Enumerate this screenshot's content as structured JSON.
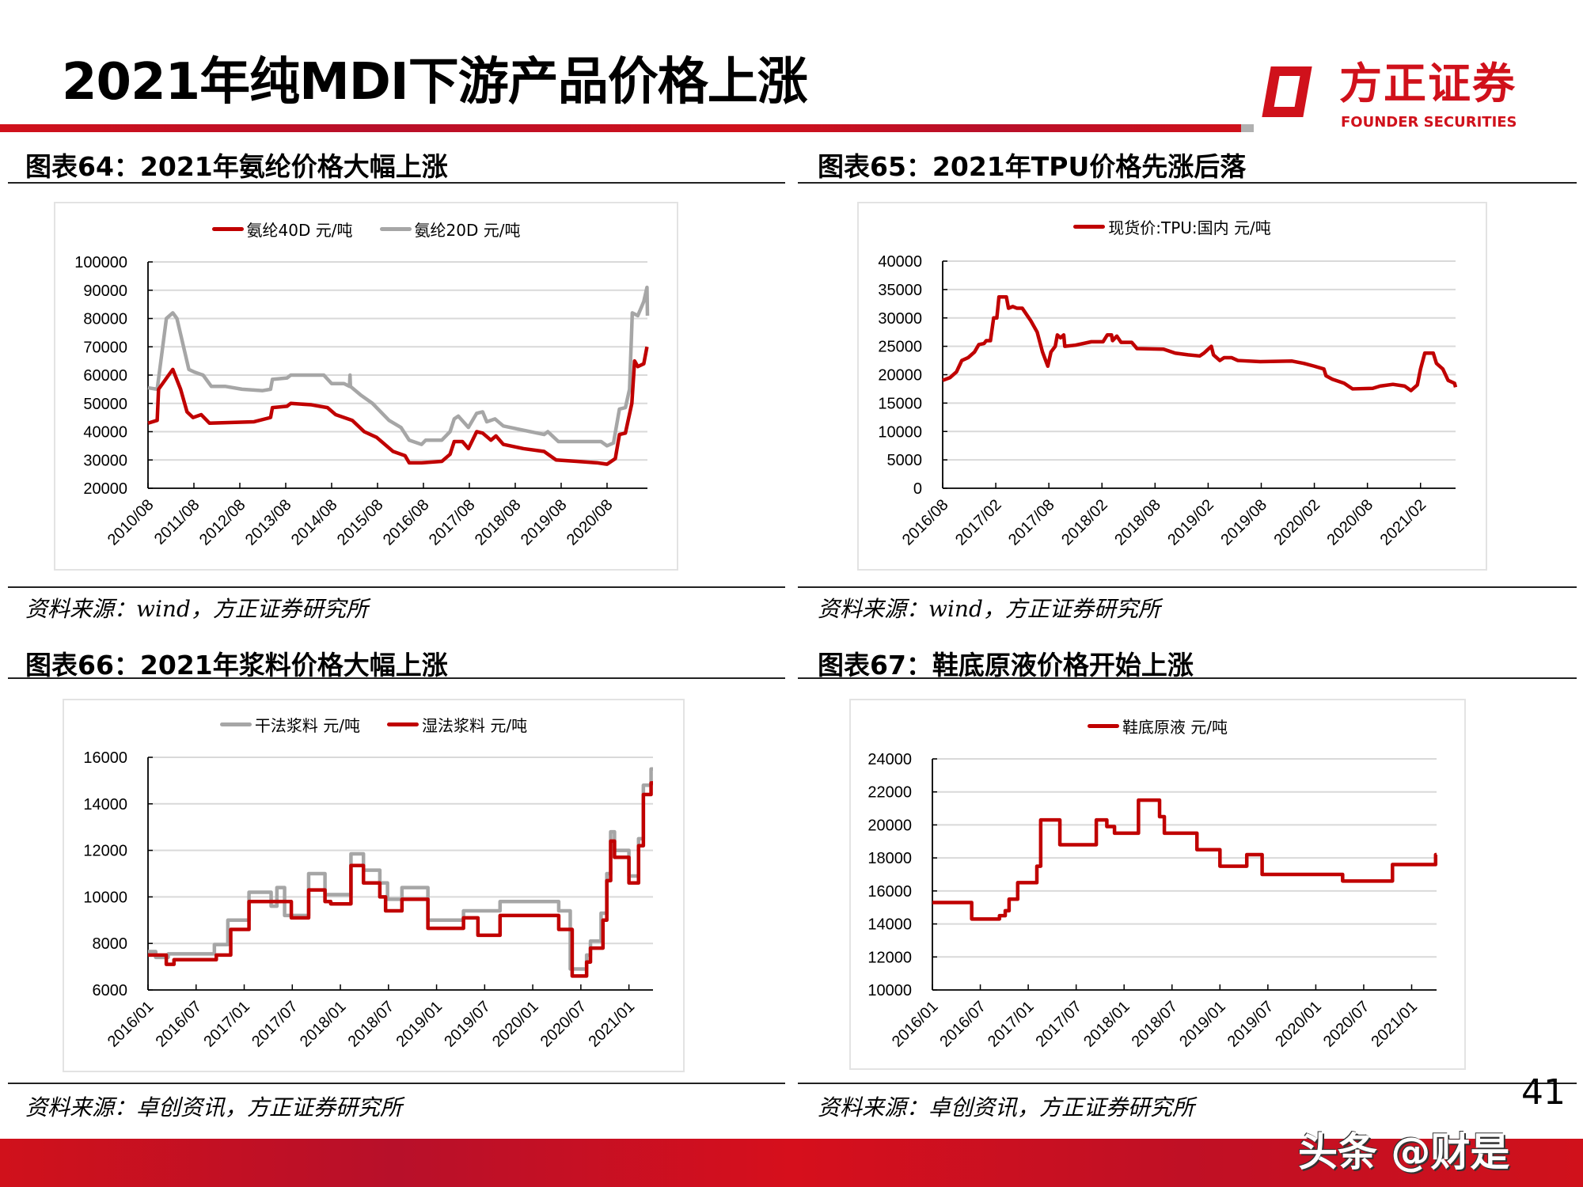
{
  "page": {
    "title": "2021年纯MDI下游产品价格上涨",
    "logo_cn": "方正证券",
    "logo_en": "FOUNDER SECURITIES",
    "page_number": "41",
    "watermark": "头条 @财是"
  },
  "panels": [
    {
      "caption": "图表64：2021年氨纶价格大幅上涨",
      "source": "资料来源：wind，方正证券研究所"
    },
    {
      "caption": "图表65：2021年TPU价格先涨后落",
      "source": "资料来源：wind，方正证券研究所"
    },
    {
      "caption": "图表66：2021年浆料价格大幅上涨",
      "source": "资料来源：卓创资讯，方正证券研究所"
    },
    {
      "caption": "图表67：鞋底原液价格开始上涨",
      "source": "资料来源：卓创资讯，方正证券研究所"
    }
  ],
  "chart_data": [
    {
      "type": "line",
      "title": "2021年氨纶价格大幅上涨",
      "legend_placement": "top-center",
      "grid": true,
      "xlim": [
        2010.58,
        2021.46
      ],
      "ylim": [
        20000,
        100000
      ],
      "yticks": [
        20000,
        30000,
        40000,
        50000,
        60000,
        70000,
        80000,
        90000,
        100000
      ],
      "xticks": [
        {
          "label": "2010/08",
          "x": 2010.58
        },
        {
          "label": "2011/08",
          "x": 2011.58
        },
        {
          "label": "2012/08",
          "x": 2012.58
        },
        {
          "label": "2013/08",
          "x": 2013.58
        },
        {
          "label": "2014/08",
          "x": 2014.58
        },
        {
          "label": "2015/08",
          "x": 2015.58
        },
        {
          "label": "2016/08",
          "x": 2016.58
        },
        {
          "label": "2017/08",
          "x": 2017.58
        },
        {
          "label": "2018/08",
          "x": 2018.58
        },
        {
          "label": "2019/08",
          "x": 2019.58
        },
        {
          "label": "2020/08",
          "x": 2020.58
        }
      ],
      "series": [
        {
          "name": "氨纶20D 元/吨",
          "color": "#a6a6a6",
          "interp": "linear",
          "x": [
            2010.58,
            2010.78,
            2010.98,
            2011.12,
            2011.21,
            2011.47,
            2011.6,
            2011.78,
            2011.96,
            2012.27,
            2012.63,
            2013.07,
            2013.25,
            2013.29,
            2013.61,
            2013.69,
            2014.41,
            2014.58,
            2014.85,
            2014.97,
            2014.98,
            2014.99,
            2015.21,
            2015.47,
            2015.83,
            2016.09,
            2016.27,
            2016.54,
            2016.63,
            2016.98,
            2017.16,
            2017.25,
            2017.34,
            2017.56,
            2017.74,
            2017.87,
            2017.96,
            2018.14,
            2018.32,
            2018.76,
            2019.21,
            2019.29,
            2019.52,
            2020.45,
            2020.58,
            2020.72,
            2020.85,
            2020.98,
            2021.07,
            2021.13,
            2021.25,
            2021.38,
            2021.45,
            2021.46
          ],
          "y": [
            55500,
            55000,
            80000,
            82000,
            80000,
            62000,
            61000,
            60000,
            56000,
            56000,
            55000,
            54500,
            55000,
            58500,
            59000,
            60000,
            60000,
            57000,
            57000,
            56000,
            60000,
            56000,
            53000,
            50000,
            44000,
            41500,
            37000,
            35500,
            37000,
            37000,
            40000,
            44500,
            45500,
            41500,
            46500,
            47000,
            43500,
            44500,
            42000,
            40500,
            39000,
            40000,
            36500,
            36500,
            35000,
            36000,
            48000,
            48500,
            55000,
            82000,
            81000,
            86000,
            91000,
            81000
          ]
        },
        {
          "name": "氨纶40D 元/吨",
          "color": "#c00000",
          "interp": "linear",
          "x": [
            2010.58,
            2010.78,
            2010.81,
            2011.03,
            2011.12,
            2011.29,
            2011.43,
            2011.56,
            2011.74,
            2011.92,
            2012.89,
            2013.25,
            2013.29,
            2013.61,
            2013.69,
            2014.14,
            2014.49,
            2014.67,
            2015.03,
            2015.29,
            2015.56,
            2015.92,
            2016.18,
            2016.27,
            2016.54,
            2016.98,
            2017.16,
            2017.25,
            2017.43,
            2017.56,
            2017.74,
            2017.87,
            2018.05,
            2018.16,
            2018.32,
            2018.76,
            2019.21,
            2019.47,
            2019.92,
            2020.36,
            2020.58,
            2020.76,
            2020.85,
            2020.98,
            2021.12,
            2021.18,
            2021.25,
            2021.38,
            2021.45
          ],
          "y": [
            43000,
            44000,
            55000,
            60000,
            62000,
            55000,
            47000,
            45000,
            46000,
            43000,
            43500,
            45000,
            48500,
            49000,
            50000,
            49500,
            48500,
            46000,
            44000,
            40000,
            38000,
            33000,
            31500,
            29000,
            29000,
            29500,
            32000,
            36500,
            36500,
            34000,
            40000,
            39500,
            37000,
            38500,
            35500,
            34000,
            33000,
            30000,
            29500,
            29000,
            28500,
            30500,
            39000,
            39500,
            50000,
            65000,
            63000,
            64000,
            70000
          ]
        }
      ]
    },
    {
      "type": "line",
      "title": "2021年TPU价格先涨后落",
      "legend_placement": "top-center",
      "grid": true,
      "xlim": [
        2016.58,
        2021.41
      ],
      "ylim": [
        0,
        40000
      ],
      "yticks": [
        0,
        5000,
        10000,
        15000,
        20000,
        25000,
        30000,
        35000,
        40000
      ],
      "xticks": [
        {
          "label": "2016/08",
          "x": 2016.58
        },
        {
          "label": "2017/02",
          "x": 2017.08
        },
        {
          "label": "2017/08",
          "x": 2017.58
        },
        {
          "label": "2018/02",
          "x": 2018.08
        },
        {
          "label": "2018/08",
          "x": 2018.58
        },
        {
          "label": "2019/02",
          "x": 2019.08
        },
        {
          "label": "2019/08",
          "x": 2019.58
        },
        {
          "label": "2020/02",
          "x": 2020.08
        },
        {
          "label": "2020/08",
          "x": 2020.58
        },
        {
          "label": "2021/02",
          "x": 2021.08
        }
      ],
      "series": [
        {
          "name": "现货价:TPU:国内 元/吨",
          "color": "#c00000",
          "interp": "linear",
          "x": [
            2016.58,
            2016.65,
            2016.71,
            2016.76,
            2016.82,
            2016.88,
            2016.92,
            2016.97,
            2016.99,
            2017.03,
            2017.06,
            2017.09,
            2017.11,
            2017.18,
            2017.2,
            2017.24,
            2017.28,
            2017.33,
            2017.41,
            2017.47,
            2017.52,
            2017.57,
            2017.6,
            2017.64,
            2017.66,
            2017.69,
            2017.72,
            2017.73,
            2017.83,
            2017.98,
            2018.09,
            2018.13,
            2018.17,
            2018.18,
            2018.22,
            2018.26,
            2018.36,
            2018.41,
            2018.66,
            2018.77,
            2018.89,
            2019.0,
            2019.04,
            2019.11,
            2019.13,
            2019.19,
            2019.23,
            2019.3,
            2019.36,
            2019.57,
            2019.87,
            2019.98,
            2020.08,
            2020.17,
            2020.19,
            2020.25,
            2020.36,
            2020.44,
            2020.63,
            2020.7,
            2020.82,
            2020.93,
            2020.99,
            2021.05,
            2021.08,
            2021.12,
            2021.2,
            2021.23,
            2021.29,
            2021.34,
            2021.4,
            2021.41
          ],
          "y": [
            19000,
            19500,
            20500,
            22500,
            23000,
            24000,
            25300,
            25500,
            26000,
            26000,
            30000,
            30000,
            33700,
            33700,
            31700,
            32000,
            31700,
            31700,
            29500,
            27500,
            24000,
            21500,
            24000,
            25000,
            27000,
            26500,
            27000,
            25000,
            25200,
            25800,
            25800,
            27000,
            27000,
            26000,
            26800,
            25700,
            25700,
            24600,
            24500,
            23800,
            23500,
            23300,
            23800,
            25000,
            23500,
            22500,
            23000,
            23000,
            22500,
            22300,
            22400,
            22000,
            21500,
            21000,
            19800,
            19200,
            18500,
            17500,
            17600,
            18000,
            18300,
            18000,
            17200,
            18200,
            21000,
            23800,
            23800,
            22000,
            21000,
            19000,
            18500,
            17800
          ]
        }
      ]
    },
    {
      "type": "line",
      "title": "2021年浆料价格大幅上涨",
      "legend_placement": "top-center",
      "grid": true,
      "xlim": [
        2016.0,
        2021.25
      ],
      "ylim": [
        6000,
        16000
      ],
      "yticks": [
        6000,
        8000,
        10000,
        12000,
        14000,
        16000
      ],
      "xticks": [
        {
          "label": "2016/01",
          "x": 2016.0
        },
        {
          "label": "2016/07",
          "x": 2016.5
        },
        {
          "label": "2017/01",
          "x": 2017.0
        },
        {
          "label": "2017/07",
          "x": 2017.5
        },
        {
          "label": "2018/01",
          "x": 2018.0
        },
        {
          "label": "2018/07",
          "x": 2018.5
        },
        {
          "label": "2019/01",
          "x": 2019.0
        },
        {
          "label": "2019/07",
          "x": 2019.5
        },
        {
          "label": "2020/01",
          "x": 2020.0
        },
        {
          "label": "2020/07",
          "x": 2020.5
        },
        {
          "label": "2021/01",
          "x": 2021.0
        }
      ],
      "series": [
        {
          "name": "干法浆料 元/吨",
          "color": "#a6a6a6",
          "interp": "step",
          "x": [
            2016.0,
            2016.08,
            2016.21,
            2016.69,
            2016.83,
            2017.05,
            2017.28,
            2017.34,
            2017.42,
            2017.67,
            2017.84,
            2018.11,
            2018.24,
            2018.41,
            2018.49,
            2018.64,
            2018.91,
            2019.28,
            2019.66,
            2020.27,
            2020.39,
            2020.56,
            2020.6,
            2020.71,
            2020.77,
            2020.81,
            2020.85,
            2021.0,
            2021.1,
            2021.15,
            2021.23,
            2021.25
          ],
          "y": [
            7650,
            7400,
            7550,
            7950,
            9000,
            10200,
            9600,
            10400,
            9200,
            11000,
            10100,
            11850,
            11150,
            10600,
            9900,
            10400,
            9000,
            9400,
            9800,
            9400,
            6900,
            7500,
            8100,
            9300,
            11000,
            12800,
            12000,
            10900,
            12500,
            14800,
            15500,
            15500
          ]
        },
        {
          "name": "湿法浆料 元/吨",
          "color": "#c00000",
          "interp": "step",
          "x": [
            2016.0,
            2016.19,
            2016.27,
            2016.71,
            2016.86,
            2017.05,
            2017.49,
            2017.67,
            2017.84,
            2017.9,
            2018.11,
            2018.24,
            2018.41,
            2018.47,
            2018.64,
            2018.91,
            2019.28,
            2019.43,
            2019.66,
            2020.27,
            2020.41,
            2020.56,
            2020.6,
            2020.73,
            2020.77,
            2020.81,
            2020.85,
            2021.0,
            2021.1,
            2021.15,
            2021.23,
            2021.25
          ],
          "y": [
            7500,
            7100,
            7300,
            7500,
            8600,
            9800,
            9100,
            10300,
            9800,
            9700,
            11350,
            10600,
            10000,
            9400,
            9900,
            8650,
            9100,
            8350,
            9200,
            8600,
            6600,
            7200,
            7800,
            9000,
            10700,
            12400,
            11700,
            10600,
            12200,
            14400,
            14900,
            14900
          ]
        }
      ]
    },
    {
      "type": "line",
      "title": "鞋底原液价格开始上涨",
      "legend_placement": "top-center",
      "grid": true,
      "xlim": [
        2016.0,
        2021.26
      ],
      "ylim": [
        10000,
        24000
      ],
      "yticks": [
        10000,
        12000,
        14000,
        16000,
        18000,
        20000,
        22000,
        24000
      ],
      "xticks": [
        {
          "label": "2016/01",
          "x": 2016.0
        },
        {
          "label": "2016/07",
          "x": 2016.5
        },
        {
          "label": "2017/01",
          "x": 2017.0
        },
        {
          "label": "2017/07",
          "x": 2017.5
        },
        {
          "label": "2018/01",
          "x": 2018.0
        },
        {
          "label": "2018/07",
          "x": 2018.5
        },
        {
          "label": "2019/01",
          "x": 2019.0
        },
        {
          "label": "2019/07",
          "x": 2019.5
        },
        {
          "label": "2020/01",
          "x": 2020.0
        },
        {
          "label": "2020/07",
          "x": 2020.5
        },
        {
          "label": "2021/01",
          "x": 2021.0
        }
      ],
      "series": [
        {
          "name": "鞋底原液 元/吨",
          "color": "#c00000",
          "interp": "step",
          "x": [
            2016.0,
            2016.41,
            2016.7,
            2016.76,
            2016.8,
            2016.89,
            2017.09,
            2017.13,
            2017.33,
            2017.71,
            2017.82,
            2017.9,
            2018.15,
            2018.37,
            2018.42,
            2018.76,
            2019.0,
            2019.28,
            2019.44,
            2020.28,
            2020.8,
            2021.25,
            2021.26
          ],
          "y": [
            15300,
            14300,
            14500,
            14800,
            15500,
            16500,
            17500,
            20300,
            18800,
            20300,
            19900,
            19500,
            21500,
            20500,
            19500,
            18500,
            17500,
            18200,
            17000,
            16600,
            17600,
            18200,
            18200
          ]
        }
      ]
    }
  ]
}
